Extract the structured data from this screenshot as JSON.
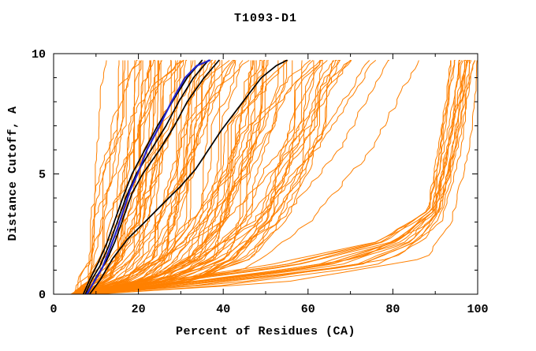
{
  "window": {
    "background": "#ffffff"
  },
  "chart_data": {
    "type": "line",
    "title": "T1093-D1",
    "xlabel": "Percent of Residues (CA)",
    "ylabel": "Distance Cutoff, A",
    "xlim": [
      0,
      100
    ],
    "ylim": [
      0,
      10
    ],
    "x_major_ticks": [
      0,
      20,
      40,
      60,
      80,
      100
    ],
    "x_major_tick_labels": [
      "0",
      "20",
      "40",
      "60",
      "80",
      "100"
    ],
    "x_minor_tick_step": 10,
    "y_major_ticks": [
      0,
      5,
      10
    ],
    "y_major_tick_labels": [
      "0",
      "5",
      "10"
    ],
    "y_minor_tick_step": 1,
    "grid": false,
    "legend_position": "none",
    "ticks_direction": "in",
    "ticks_on_all_sides": true,
    "curve_top_y": 9.72,
    "colors": {
      "ensemble_orange": "#FF8000",
      "highlight_black": "#000000",
      "highlight_blue": "#2222CC",
      "axis": "#000000",
      "background": "#FFFFFF"
    },
    "ensemble": {
      "description_color": "#FF8000",
      "stroke_width": 1,
      "seed": 1093,
      "sample_step": 0.18,
      "t_noise": 0.15,
      "groups": [
        {
          "name": "main-fan",
          "count": 84,
          "jitter": 0.5,
          "anchors": [
            {
              "y": 0.0,
              "x": [
                4.5,
                9.5
              ]
            },
            {
              "y": 0.6,
              "x": [
                6,
                34
              ]
            },
            {
              "y": 1.5,
              "x": [
                7,
                47
              ]
            },
            {
              "y": 3.0,
              "x": [
                8,
                55
              ]
            },
            {
              "y": 5.0,
              "x": [
                9.5,
                60
              ]
            },
            {
              "y": 7.0,
              "x": [
                10.5,
                64
              ]
            },
            {
              "y": 8.5,
              "x": [
                11,
                67
              ]
            },
            {
              "y": 9.72,
              "x": [
                12,
                70
              ]
            }
          ]
        },
        {
          "name": "mid-sparse",
          "count": 5,
          "jitter": 0.5,
          "anchors": [
            {
              "y": 0.0,
              "x": [
                6,
                10
              ]
            },
            {
              "y": 1.0,
              "x": [
                20,
                45
              ]
            },
            {
              "y": 3.0,
              "x": [
                40,
                62
              ]
            },
            {
              "y": 6.0,
              "x": [
                55,
                75
              ]
            },
            {
              "y": 9.72,
              "x": [
                70,
                86
              ]
            }
          ]
        },
        {
          "name": "right-bundle",
          "count": 15,
          "jitter": 0.35,
          "anchors": [
            {
              "y": 0.0,
              "x": [
                5,
                9
              ]
            },
            {
              "y": 0.35,
              "x": [
                12,
                40
              ]
            },
            {
              "y": 1.2,
              "x": [
                48,
                78
              ]
            },
            {
              "y": 2.2,
              "x": [
                76,
                88
              ]
            },
            {
              "y": 3.5,
              "x": [
                88,
                92
              ]
            },
            {
              "y": 6.0,
              "x": [
                90,
                96
              ]
            },
            {
              "y": 8.0,
              "x": [
                92,
                98
              ]
            },
            {
              "y": 9.72,
              "x": [
                93,
                100
              ]
            }
          ]
        },
        {
          "name": "far-right",
          "count": 3,
          "jitter": 0.3,
          "anchors": [
            {
              "y": 0.0,
              "x": [
                6,
                10
              ]
            },
            {
              "y": 0.5,
              "x": [
                30,
                55
              ]
            },
            {
              "y": 1.5,
              "x": [
                70,
                88
              ]
            },
            {
              "y": 3.0,
              "x": [
                88,
                94
              ]
            },
            {
              "y": 6.0,
              "x": [
                94,
                98
              ]
            },
            {
              "y": 9.72,
              "x": [
                96,
                100
              ]
            }
          ]
        }
      ]
    },
    "highlighted_series": [
      {
        "name": "model-black-1",
        "color": "#000000",
        "stroke_width": 1.7,
        "points": [
          [
            7,
            0
          ],
          [
            8.5,
            0.6
          ],
          [
            10.5,
            1.3
          ],
          [
            12.5,
            2.1
          ],
          [
            14.5,
            3.1
          ],
          [
            16.5,
            4.1
          ],
          [
            18.5,
            5
          ],
          [
            21.5,
            6
          ],
          [
            24.5,
            7
          ],
          [
            28,
            8
          ],
          [
            31.5,
            9
          ],
          [
            35,
            9.72
          ]
        ]
      },
      {
        "name": "model-black-2",
        "color": "#000000",
        "stroke_width": 1.7,
        "points": [
          [
            7.5,
            0
          ],
          [
            9,
            0.6
          ],
          [
            11,
            1.2
          ],
          [
            13,
            2
          ],
          [
            15,
            3
          ],
          [
            17,
            4
          ],
          [
            19.5,
            5
          ],
          [
            23,
            6
          ],
          [
            26.5,
            7
          ],
          [
            29.5,
            8
          ],
          [
            33,
            9
          ],
          [
            36.5,
            9.72
          ]
        ]
      },
      {
        "name": "model-black-3",
        "color": "#000000",
        "stroke_width": 1.7,
        "points": [
          [
            8,
            0
          ],
          [
            10,
            0.7
          ],
          [
            12.5,
            1.4
          ],
          [
            14.5,
            2.2
          ],
          [
            16.5,
            3.2
          ],
          [
            18.5,
            4.2
          ],
          [
            21,
            5
          ],
          [
            25,
            6
          ],
          [
            28.5,
            7
          ],
          [
            31.5,
            8
          ],
          [
            35.5,
            9
          ],
          [
            39,
            9.72
          ]
        ]
      },
      {
        "name": "model-black-4",
        "color": "#000000",
        "stroke_width": 1.7,
        "points": [
          [
            8.5,
            0
          ],
          [
            11,
            0.6
          ],
          [
            14,
            1.5
          ],
          [
            17.5,
            2.3
          ],
          [
            21.5,
            3
          ],
          [
            26,
            3.8
          ],
          [
            30,
            4.5
          ],
          [
            33.5,
            5.2
          ],
          [
            36.5,
            6
          ],
          [
            39.5,
            6.8
          ],
          [
            42.5,
            7.5
          ],
          [
            45.5,
            8.2
          ],
          [
            49,
            9
          ],
          [
            52.5,
            9.5
          ],
          [
            55,
            9.72
          ]
        ]
      },
      {
        "name": "model-blue",
        "color": "#2222CC",
        "stroke_width": 2.2,
        "points": [
          [
            7.8,
            0
          ],
          [
            9.5,
            0.5
          ],
          [
            11.5,
            1.1
          ],
          [
            13.5,
            2
          ],
          [
            15,
            2.7
          ],
          [
            16.5,
            3.5
          ],
          [
            18,
            4.3
          ],
          [
            19.8,
            5
          ],
          [
            22,
            6
          ],
          [
            25,
            7
          ],
          [
            27.8,
            8
          ],
          [
            31,
            9
          ],
          [
            33.8,
            9.5
          ],
          [
            36.8,
            9.72
          ]
        ]
      }
    ]
  }
}
